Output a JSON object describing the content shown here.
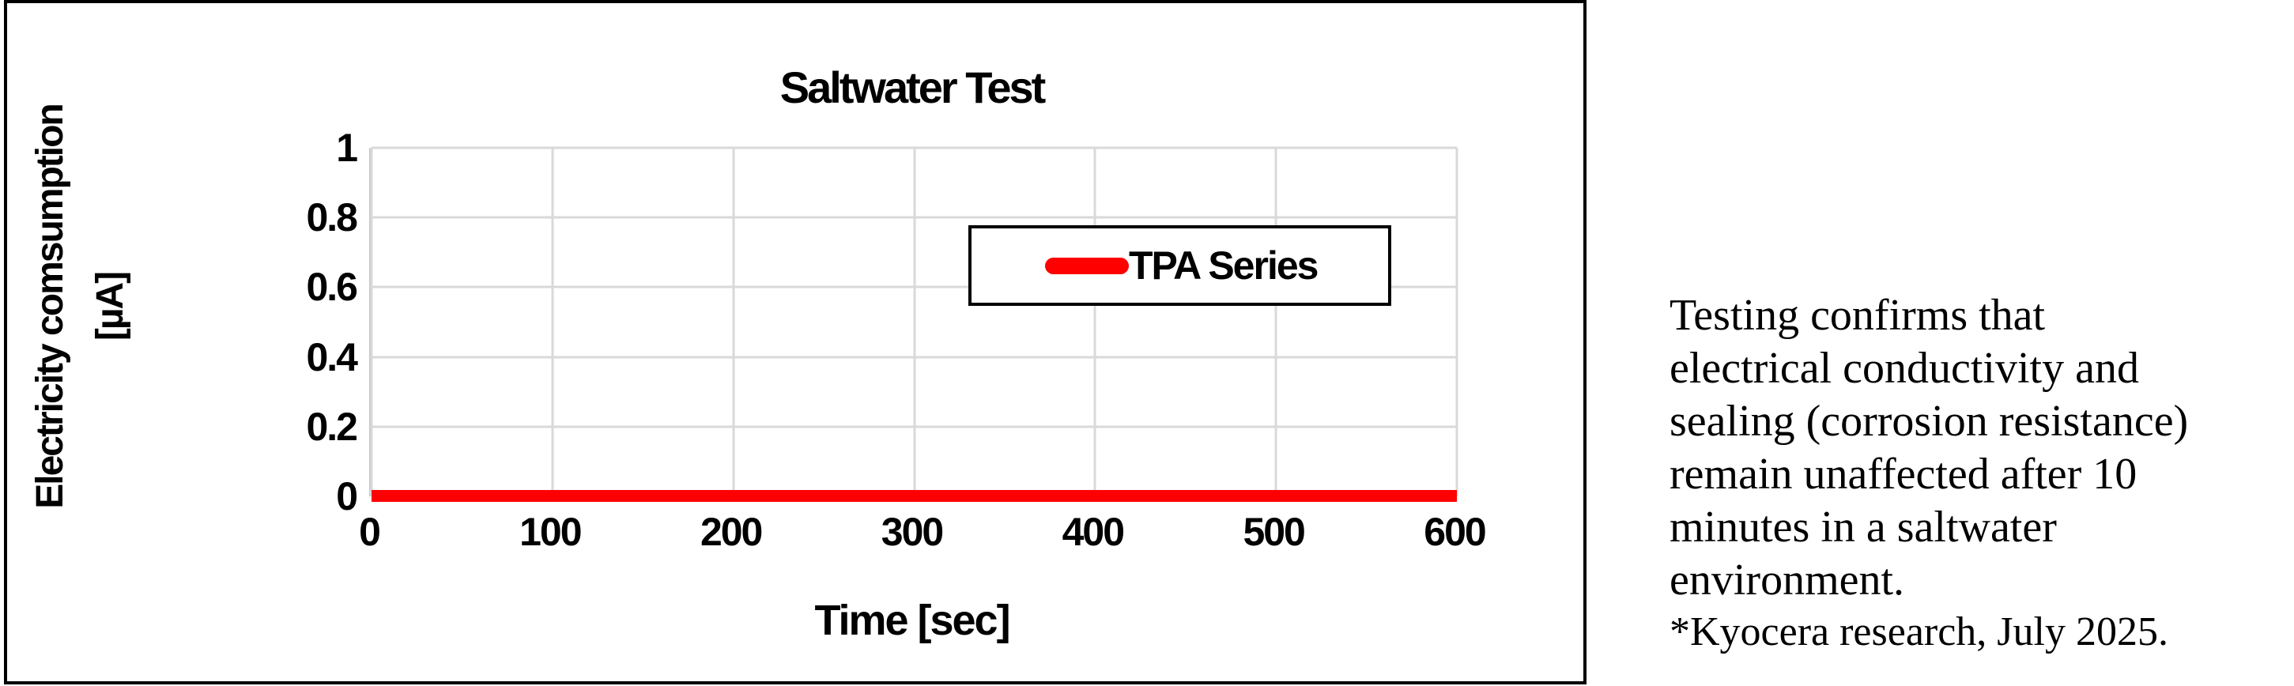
{
  "chart_data": {
    "type": "line",
    "title": "Saltwater Test",
    "xlabel": "Time [sec]",
    "ylabel": "Electricity comsumption [µA]",
    "ylabel_lines": [
      "Electricity comsumption",
      "[µA]"
    ],
    "xlim": [
      0,
      600
    ],
    "ylim": [
      0,
      1
    ],
    "x_ticks": [
      0,
      100,
      200,
      300,
      400,
      500,
      600
    ],
    "y_ticks": [
      0,
      0.2,
      0.4,
      0.6,
      0.8,
      1
    ],
    "y_tick_labels": [
      "0",
      "0.2",
      "0.4",
      "0.6",
      "0.8",
      "1"
    ],
    "grid": true,
    "legend_position": "inside-center-right",
    "series": [
      {
        "name": "TPA Series",
        "color": "#FF0000",
        "x": [
          0,
          100,
          200,
          300,
          400,
          500,
          600
        ],
        "y": [
          0,
          0,
          0,
          0,
          0,
          0,
          0
        ]
      }
    ]
  },
  "annotation": {
    "text": "Testing confirms that\nelectrical conductivity and\nsealing (corrosion resistance)\nremain unaffected after 10\nminutes in a saltwater\nenvironment.",
    "footnote": "*Kyocera research, July 2025."
  },
  "colors": {
    "series_red": "#FF0000",
    "gridline": "#d9d9d9",
    "axis_line": "#c9c9c9",
    "frame_border": "#000000",
    "background": "#ffffff"
  }
}
